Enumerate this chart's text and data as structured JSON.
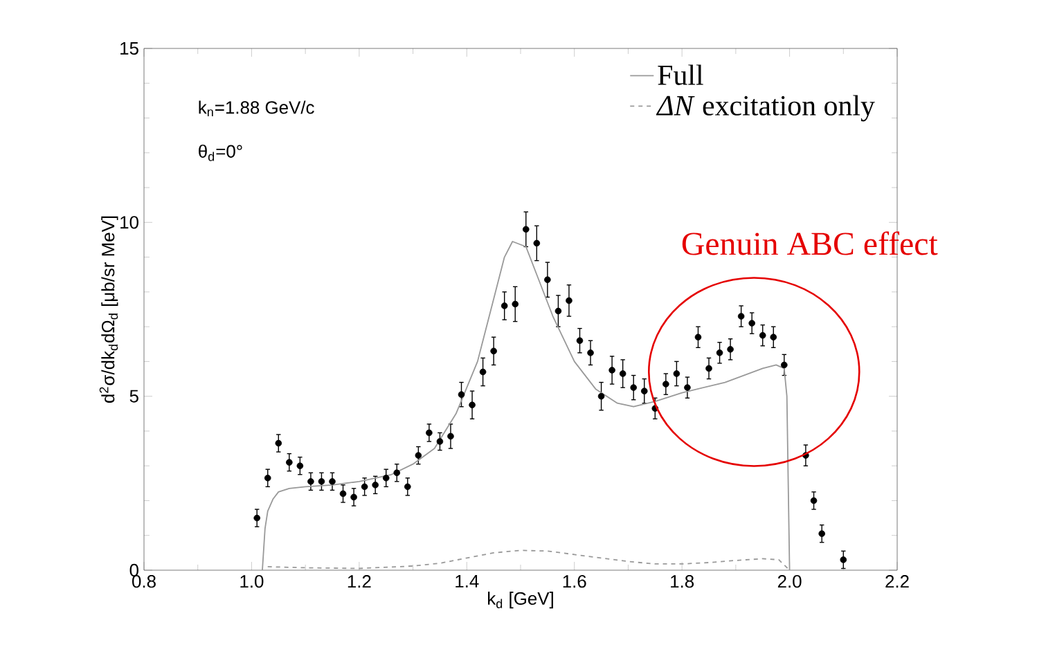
{
  "chart_data": {
    "type": "line",
    "xlabel": "k$_{d}$ [GeV]",
    "ylabel": "d$^{2}$σ/dk$_{d}$dΩ$_{d}$ [μb/sr MeV]",
    "xlim": [
      0.8,
      2.2
    ],
    "ylim": [
      0,
      15
    ],
    "xticks": [
      0.8,
      {
        "value": 0.9,
        "label": null
      },
      {
        "value": 1,
        "label": "1.0"
      },
      {
        "value": 1.1,
        "label": null
      },
      1.2,
      {
        "value": 1.3,
        "label": null
      },
      1.4,
      {
        "value": 1.5,
        "label": null
      },
      1.6,
      {
        "value": 1.7,
        "label": null
      },
      1.8,
      {
        "value": 1.9,
        "label": null
      },
      {
        "value": 2,
        "label": "2.0"
      },
      {
        "value": 2.1,
        "label": null
      },
      2.2
    ],
    "yticks": [
      0,
      {
        "value": 1,
        "label": null
      },
      {
        "value": 2,
        "label": null
      },
      {
        "value": 3,
        "label": null
      },
      {
        "value": 4,
        "label": null
      },
      5,
      {
        "value": 6,
        "label": null
      },
      {
        "value": 7,
        "label": null
      },
      {
        "value": 8,
        "label": null
      },
      {
        "value": 9,
        "label": null
      },
      10,
      {
        "value": 11,
        "label": null
      },
      {
        "value": 12,
        "label": null
      },
      {
        "value": 13,
        "label": null
      },
      {
        "value": 14,
        "label": null
      },
      15
    ],
    "legend": "top right",
    "grid": false,
    "marker": "circle",
    "series": [
      {
        "type": "scatter",
        "color": "#000000",
        "x": [
          1.01,
          1.03,
          1.05,
          1.07,
          1.09,
          1.11,
          1.13,
          1.15,
          1.17,
          1.19,
          1.21,
          1.23,
          1.25,
          1.27,
          1.29,
          1.31,
          1.33,
          1.35,
          1.37,
          1.39,
          1.41,
          1.43,
          1.45,
          1.47,
          1.49,
          1.51,
          1.53,
          1.55,
          1.57,
          1.59,
          1.61,
          1.63,
          1.65,
          1.67,
          1.69,
          1.71,
          1.73,
          1.75,
          1.77,
          1.79,
          1.81,
          1.83,
          1.85,
          1.87,
          1.89,
          1.91,
          1.93,
          1.95,
          1.97,
          1.99,
          2.03,
          2.045,
          2.06,
          2.1
        ],
        "values": [
          1.5,
          2.65,
          3.65,
          3.1,
          3.0,
          2.55,
          2.55,
          2.55,
          2.2,
          2.1,
          2.4,
          2.45,
          2.65,
          2.8,
          2.4,
          3.3,
          3.95,
          3.7,
          3.85,
          5.05,
          4.75,
          5.7,
          6.3,
          7.6,
          7.65,
          9.8,
          9.4,
          8.35,
          7.45,
          7.75,
          6.6,
          6.25,
          5.0,
          5.75,
          5.65,
          5.25,
          5.15,
          4.65,
          5.35,
          5.65,
          5.25,
          6.7,
          5.8,
          6.25,
          6.35,
          7.3,
          7.1,
          6.75,
          6.7,
          5.9,
          3.3,
          2.0,
          1.05,
          0.3
        ],
        "errors": [
          0.25,
          0.25,
          0.25,
          0.25,
          0.25,
          0.25,
          0.25,
          0.25,
          0.25,
          0.25,
          0.25,
          0.25,
          0.25,
          0.25,
          0.25,
          0.25,
          0.25,
          0.25,
          0.35,
          0.35,
          0.4,
          0.4,
          0.4,
          0.4,
          0.5,
          0.5,
          0.5,
          0.5,
          0.45,
          0.45,
          0.35,
          0.35,
          0.4,
          0.4,
          0.4,
          0.35,
          0.35,
          0.3,
          0.3,
          0.35,
          0.3,
          0.3,
          0.3,
          0.3,
          0.3,
          0.3,
          0.3,
          0.3,
          0.3,
          0.3,
          0.3,
          0.25,
          0.25,
          0.25
        ]
      },
      {
        "name": "Full",
        "marker": "none",
        "color": "#999999",
        "line_style": "solid",
        "x": [
          1.02,
          1.025,
          1.03,
          1.04,
          1.05,
          1.07,
          1.1,
          1.15,
          1.2,
          1.26,
          1.3,
          1.34,
          1.38,
          1.42,
          1.45,
          1.47,
          1.485,
          1.51,
          1.53,
          1.56,
          1.6,
          1.64,
          1.68,
          1.71,
          1.75,
          1.8,
          1.88,
          1.95,
          1.975,
          1.99,
          1.995,
          2.0
        ],
        "values": [
          0,
          1.2,
          1.7,
          2.05,
          2.25,
          2.35,
          2.4,
          2.45,
          2.55,
          2.75,
          3.05,
          3.5,
          4.5,
          6.0,
          7.8,
          9.0,
          9.45,
          9.3,
          8.5,
          7.3,
          6.0,
          5.2,
          4.8,
          4.7,
          4.85,
          5.1,
          5.4,
          5.8,
          5.9,
          5.8,
          5.0,
          0
        ]
      },
      {
        "marker": "none",
        "name": "*ΔN* excitation only",
        "color": "#999999",
        "line_style": "dashed",
        "x": [
          1.03,
          1.1,
          1.2,
          1.3,
          1.35,
          1.4,
          1.45,
          1.5,
          1.55,
          1.6,
          1.65,
          1.7,
          1.75,
          1.8,
          1.85,
          1.9,
          1.95,
          1.98,
          2.0
        ],
        "values": [
          0.1,
          0.07,
          0.05,
          0.12,
          0.2,
          0.35,
          0.5,
          0.57,
          0.55,
          0.45,
          0.35,
          0.25,
          0.18,
          0.18,
          0.22,
          0.28,
          0.33,
          0.3,
          0
        ]
      }
    ],
    "annotations": [
      "k$_{n}$=1.88 GeV/c",
      "θ$_{d}$=0°",
      "Genuin ABC effect"
    ]
  }
}
